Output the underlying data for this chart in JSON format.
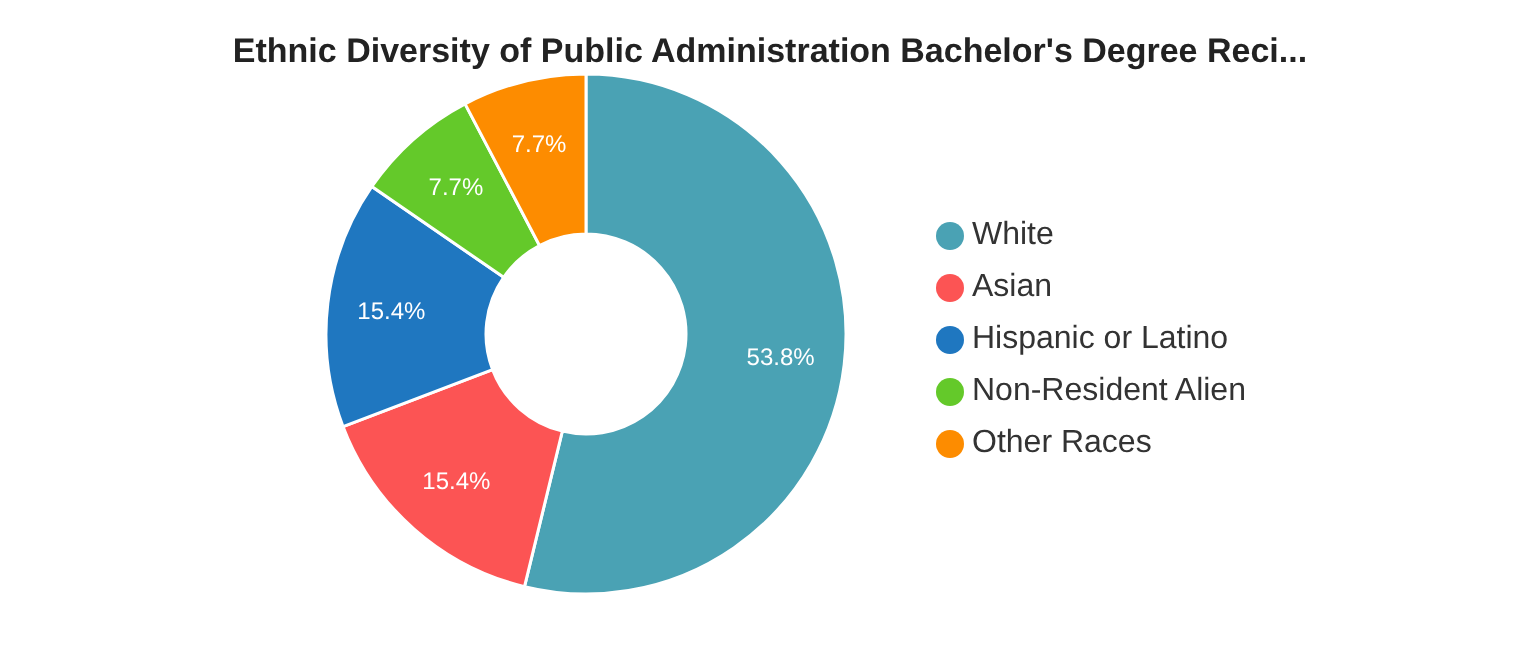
{
  "chart_data": {
    "type": "donut",
    "title": "Ethnic Diversity of Public Administration Bachelor's Degree Reci...",
    "categories": [
      "White",
      "Asian",
      "Hispanic or Latino",
      "Non-Resident Alien",
      "Other Races"
    ],
    "values": [
      53.8,
      15.4,
      15.4,
      7.7,
      7.7
    ],
    "colors": [
      "#4aa2b4",
      "#fc5454",
      "#1f77c0",
      "#64c92a",
      "#fd8c00"
    ],
    "value_labels": [
      "53.8%",
      "15.4%",
      "15.4%",
      "7.7%",
      "7.7%"
    ],
    "legend": "right"
  }
}
